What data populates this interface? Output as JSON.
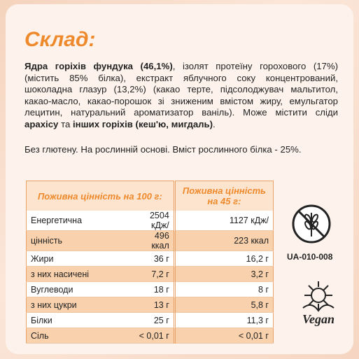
{
  "title": "Склад:",
  "ingredients": [
    {
      "text": "Ядра горіхів фундука (46,1%)",
      "bold": true
    },
    {
      "text": ", ізолят протеїну горохового (17%) (містить 85% білка), екстракт яблучного соку концентрований, шоколадна глазур (13,2%) (какао терте, підсолоджувач мальтитол, какао-масло, какао-порошок зі зниженим вмістом жиру, емульгатор лецитин, натуральний ароматизатор ваніль). Може містити сліди ",
      "bold": false
    },
    {
      "text": "арахісу",
      "bold": true
    },
    {
      "text": " та ",
      "bold": false
    },
    {
      "text": "інших горіхів (кеш'ю, мигдаль)",
      "bold": true
    },
    {
      "text": ".",
      "bold": false
    }
  ],
  "note": "Без глютену. На рослинній основі. Вміст рослинного білка - 25%.",
  "table": {
    "header": [
      "Поживна цінність на 100 г:",
      "Поживна цінність на 45 г:"
    ],
    "rows": [
      [
        "Енергетична",
        "2504 кДж/",
        "1127 кДж/"
      ],
      [
        "цінність",
        "496 ккал",
        "223 ккал"
      ],
      [
        "Жири",
        "36 г",
        "16,2 г"
      ],
      [
        "з них насичені",
        "7,2 г",
        "3,2 г"
      ],
      [
        "Вуглеводи",
        "18 г",
        "8 г"
      ],
      [
        "з них цукри",
        "13 г",
        "5,8 г"
      ],
      [
        "Білки",
        "25 г",
        "11,3 г"
      ],
      [
        "Сіль",
        "< 0,01 г",
        "< 0,01 г"
      ]
    ]
  },
  "certificate": "UA-010-008",
  "vegan_logo": "Vegan"
}
